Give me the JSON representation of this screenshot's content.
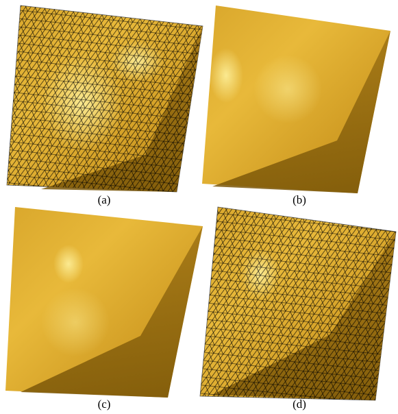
{
  "panels": [
    {
      "label": "(a)"
    },
    {
      "label": "(b)"
    },
    {
      "label": "(c)"
    },
    {
      "label": "(d)"
    }
  ]
}
